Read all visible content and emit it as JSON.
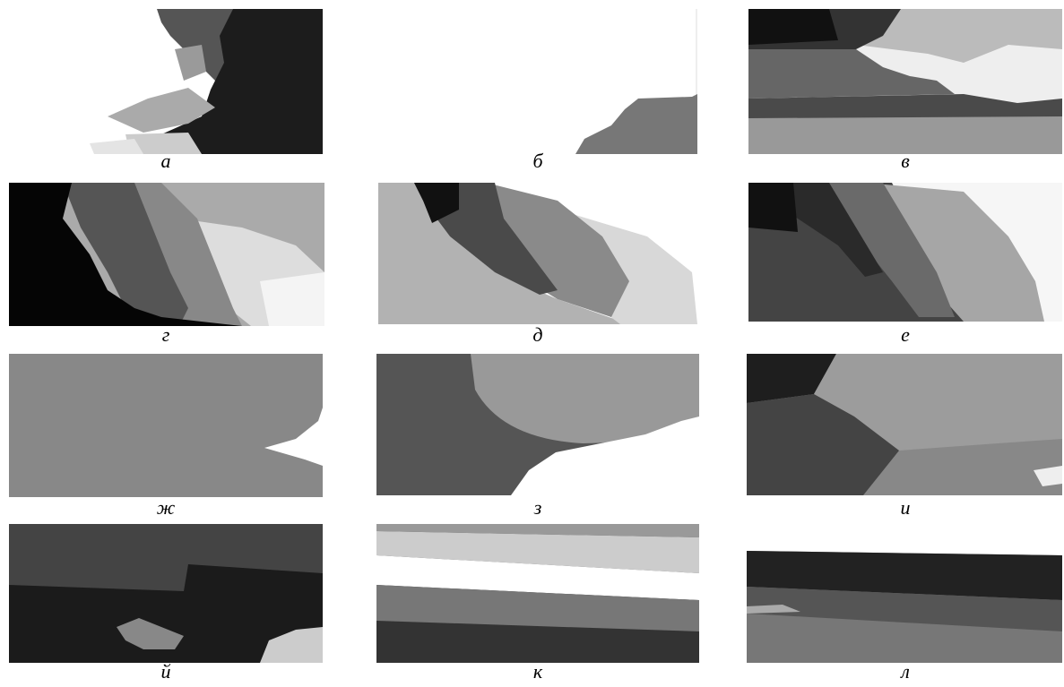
{
  "panels": [
    {
      "label": "а"
    },
    {
      "label": "б"
    },
    {
      "label": "в"
    },
    {
      "label": "г"
    },
    {
      "label": "д"
    },
    {
      "label": "е"
    },
    {
      "label": "ж"
    },
    {
      "label": "з"
    },
    {
      "label": "и"
    },
    {
      "label": "й"
    },
    {
      "label": "к"
    },
    {
      "label": "л"
    }
  ]
}
